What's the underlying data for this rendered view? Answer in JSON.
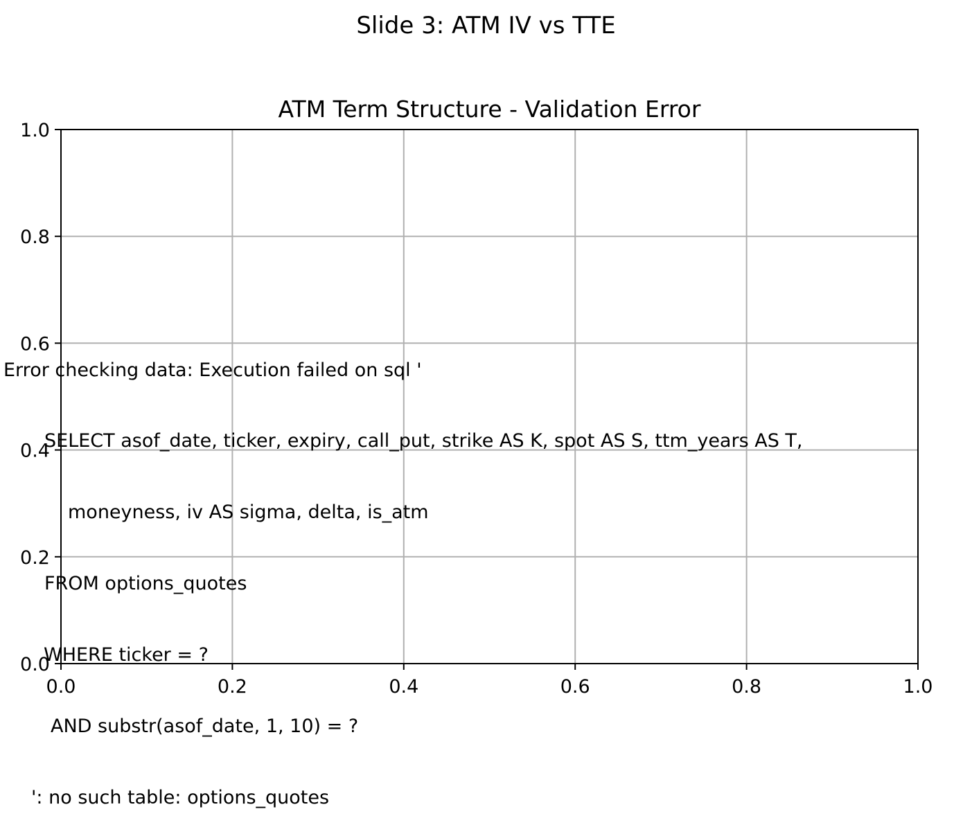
{
  "figure": {
    "suptitle": "Slide 3: ATM IV vs TTE"
  },
  "chart_data": {
    "type": "line",
    "title": "ATM Term Structure - Validation Error",
    "xlabel": "",
    "ylabel": "",
    "xlim": [
      0.0,
      1.0
    ],
    "ylim": [
      0.0,
      1.0
    ],
    "x_ticks": [
      "0.0",
      "0.2",
      "0.4",
      "0.6",
      "0.8",
      "1.0"
    ],
    "y_ticks": [
      "0.0",
      "0.2",
      "0.4",
      "0.6",
      "0.8",
      "1.0"
    ],
    "grid": true,
    "series": [],
    "annotation_lines": [
      "Error checking data: Execution failed on sql '",
      "SELECT asof_date, ticker, expiry, call_put, strike AS K, spot AS S, ttm_years AS T,",
      "moneyness, iv AS sigma, delta, is_atm",
      "FROM options_quotes",
      "WHERE ticker = ?",
      "AND substr(asof_date, 1, 10) = ?",
      "': no such table: options_quotes"
    ]
  }
}
